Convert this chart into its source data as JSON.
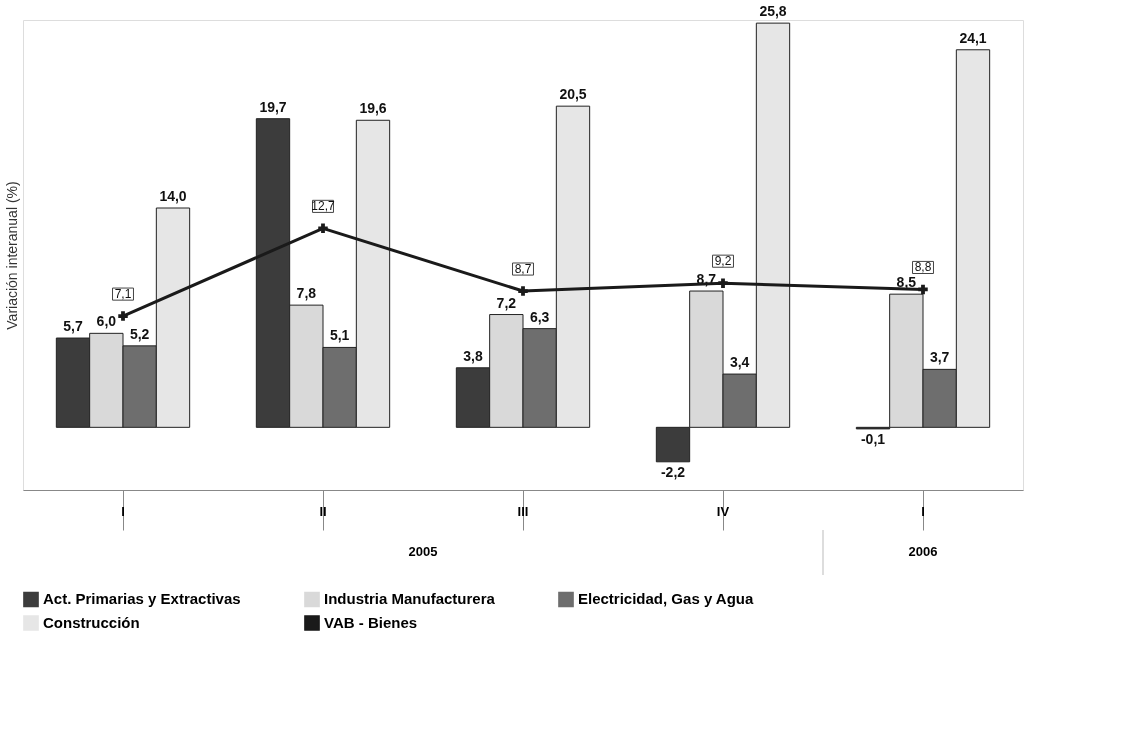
{
  "chart_data": {
    "type": "bar",
    "ylabel": "Variación interanual (%)",
    "categories": [
      "I",
      "II",
      "III",
      "IV",
      "I"
    ],
    "grid": false,
    "legend": "bottom",
    "annotations": [
      "2005",
      "2006"
    ],
    "series": [
      {
        "name": "Act. Primarias y Extractivas",
        "color": "#3c3c3c",
        "values": [
          5.7,
          19.7,
          3.8,
          -2.2,
          -0.1
        ],
        "value_labels": [
          "5,7",
          "19,7",
          "3,8",
          "-2,2",
          "-0,1"
        ]
      },
      {
        "name": "Industria Manufacturera",
        "color": "#d9d9d9",
        "values": [
          6.0,
          7.8,
          7.2,
          8.7,
          8.5
        ],
        "value_labels": [
          "6,0",
          "7,8",
          "7,2",
          "8,7",
          "8,5"
        ]
      },
      {
        "name": "Electricidad, Gas y Agua",
        "color": "#6e6e6e",
        "values": [
          5.2,
          5.1,
          6.3,
          3.4,
          3.7
        ],
        "value_labels": [
          "5,2",
          "5,1",
          "6,3",
          "3,4",
          "3,7"
        ]
      },
      {
        "name": "Construcción",
        "color": "#e6e6e6",
        "values": [
          14.0,
          19.6,
          20.5,
          25.8,
          24.1
        ],
        "value_labels": [
          "14,0",
          "19,6",
          "20,5",
          "25,8",
          "24,1"
        ]
      },
      {
        "name": "VAB - Bienes",
        "color": "#1a1a1a",
        "type": "line",
        "marker": "cross",
        "line_style": "solid",
        "values": [
          7.1,
          12.7,
          8.7,
          9.2,
          8.8
        ],
        "value_labels": [
          "7,1",
          "12,7",
          "8,7",
          "9,2",
          "8,8"
        ]
      }
    ]
  }
}
